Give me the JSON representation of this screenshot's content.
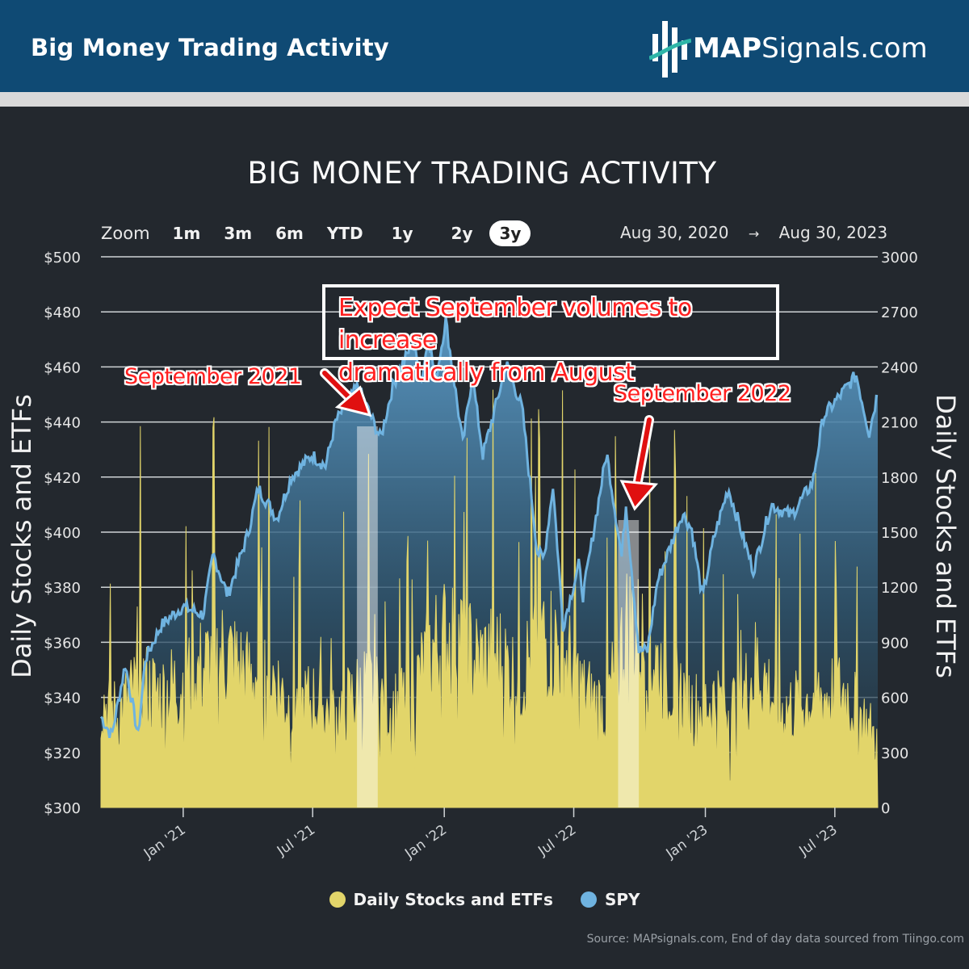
{
  "header": {
    "title": "Big Money Trading Activity",
    "brand_bold": "MAP",
    "brand_rest": "Signals.com"
  },
  "zoom": {
    "label": "Zoom",
    "buttons": [
      "1m",
      "3m",
      "6m",
      "YTD",
      "1y",
      "2y",
      "3y"
    ],
    "active": "3y"
  },
  "range": {
    "from": "Aug 30, 2020",
    "arrow": "→",
    "to": "Aug 30, 2023"
  },
  "annotations": {
    "note": [
      "Expect September volumes to increase",
      "dramatically from August"
    ],
    "sep2021": "September 2021",
    "sep2022": "September 2022"
  },
  "legend": [
    {
      "name": "Daily Stocks and ETFs",
      "color": "#e2d56a"
    },
    {
      "name": "SPY",
      "color": "#6fb3e0"
    }
  ],
  "source": "Source: MAPsignals.com, End of day data sourced from Tiingo.com",
  "chart_data": {
    "type": "line",
    "title": "BIG MONEY TRADING ACTIVITY",
    "ylabel_left": "Daily Stocks and ETFs",
    "ylabel_right": "Daily Stocks and ETFs",
    "y_left": {
      "ticks": [
        "$500",
        "$480",
        "$460",
        "$440",
        "$420",
        "$400",
        "$380",
        "$360",
        "$340",
        "$320",
        "$300"
      ],
      "range": [
        300,
        500
      ]
    },
    "y_right": {
      "ticks": [
        "3000",
        "2700",
        "2400",
        "2100",
        "1800",
        "1500",
        "1200",
        "900",
        "600",
        "300",
        "0"
      ],
      "range": [
        0,
        3000
      ]
    },
    "x_ticks": [
      {
        "label": "Jan '21",
        "date": "2021-01-01"
      },
      {
        "label": "Jul '21",
        "date": "2021-07-01"
      },
      {
        "label": "Jan '22",
        "date": "2022-01-01"
      },
      {
        "label": "Jul '22",
        "date": "2022-07-01"
      },
      {
        "label": "Jan '23",
        "date": "2023-01-01"
      },
      {
        "label": "Jul '23",
        "date": "2023-07-01"
      }
    ],
    "x_range": [
      "2020-09-08",
      "2023-08-30"
    ],
    "highlights": [
      {
        "from": "2021-09-01",
        "to": "2021-09-30",
        "label": "September 2021"
      },
      {
        "from": "2022-09-01",
        "to": "2022-09-30",
        "label": "September 2022"
      }
    ],
    "series": [
      {
        "name": "SPY",
        "axis": "left",
        "color": "#6fb3e0",
        "points": [
          [
            "2020-09-08",
            333
          ],
          [
            "2020-09-23",
            326
          ],
          [
            "2020-10-12",
            352
          ],
          [
            "2020-10-30",
            326
          ],
          [
            "2020-11-09",
            354
          ],
          [
            "2020-12-01",
            366
          ],
          [
            "2020-12-31",
            373
          ],
          [
            "2021-01-29",
            370
          ],
          [
            "2021-02-12",
            392
          ],
          [
            "2021-03-04",
            377
          ],
          [
            "2021-04-01",
            399
          ],
          [
            "2021-04-16",
            416
          ],
          [
            "2021-05-12",
            405
          ],
          [
            "2021-06-01",
            420
          ],
          [
            "2021-06-30",
            428
          ],
          [
            "2021-07-19",
            424
          ],
          [
            "2021-08-02",
            440
          ],
          [
            "2021-09-02",
            453
          ],
          [
            "2021-10-04",
            434
          ],
          [
            "2021-10-22",
            454
          ],
          [
            "2021-11-18",
            469
          ],
          [
            "2021-11-30",
            455
          ],
          [
            "2021-12-10",
            471
          ],
          [
            "2021-12-20",
            455
          ],
          [
            "2022-01-03",
            477
          ],
          [
            "2022-01-27",
            432
          ],
          [
            "2022-02-09",
            457
          ],
          [
            "2022-02-24",
            428
          ],
          [
            "2022-03-29",
            461
          ],
          [
            "2022-04-20",
            445
          ],
          [
            "2022-05-11",
            393
          ],
          [
            "2022-05-20",
            390
          ],
          [
            "2022-06-02",
            417
          ],
          [
            "2022-06-16",
            366
          ],
          [
            "2022-07-08",
            388
          ],
          [
            "2022-07-14",
            377
          ],
          [
            "2022-08-16",
            429
          ],
          [
            "2022-09-06",
            391
          ],
          [
            "2022-09-12",
            410
          ],
          [
            "2022-09-30",
            357
          ],
          [
            "2022-10-12",
            357
          ],
          [
            "2022-10-26",
            382
          ],
          [
            "2022-11-30",
            407
          ],
          [
            "2022-12-13",
            401
          ],
          [
            "2022-12-28",
            376
          ],
          [
            "2023-01-13",
            398
          ],
          [
            "2023-02-02",
            416
          ],
          [
            "2023-03-09",
            386
          ],
          [
            "2023-04-03",
            410
          ],
          [
            "2023-05-01",
            406
          ],
          [
            "2023-05-31",
            418
          ],
          [
            "2023-06-15",
            442
          ],
          [
            "2023-07-31",
            457
          ],
          [
            "2023-08-18",
            436
          ],
          [
            "2023-08-30",
            451
          ]
        ]
      },
      {
        "name": "Daily Stocks and ETFs",
        "axis": "right",
        "color": "#e2d56a",
        "points": [
          [
            "2020-09-08",
            620
          ],
          [
            "2020-10-01",
            520
          ],
          [
            "2020-11-01",
            700
          ],
          [
            "2020-12-01",
            640
          ],
          [
            "2021-01-01",
            720
          ],
          [
            "2021-02-01",
            800
          ],
          [
            "2021-03-01",
            880
          ],
          [
            "2021-04-01",
            740
          ],
          [
            "2021-05-01",
            780
          ],
          [
            "2021-06-01",
            560
          ],
          [
            "2021-07-01",
            610
          ],
          [
            "2021-08-01",
            520
          ],
          [
            "2021-09-15",
            700
          ],
          [
            "2021-10-15",
            560
          ],
          [
            "2021-11-15",
            620
          ],
          [
            "2021-12-15",
            900
          ],
          [
            "2022-01-15",
            1000
          ],
          [
            "2022-02-15",
            820
          ],
          [
            "2022-03-15",
            860
          ],
          [
            "2022-04-15",
            720
          ],
          [
            "2022-05-15",
            980
          ],
          [
            "2022-06-15",
            900
          ],
          [
            "2022-07-15",
            640
          ],
          [
            "2022-08-15",
            560
          ],
          [
            "2022-09-15",
            1050
          ],
          [
            "2022-10-15",
            880
          ],
          [
            "2022-11-15",
            720
          ],
          [
            "2022-12-15",
            560
          ],
          [
            "2023-01-15",
            620
          ],
          [
            "2023-02-15",
            560
          ],
          [
            "2023-03-15",
            820
          ],
          [
            "2023-04-15",
            540
          ],
          [
            "2023-05-15",
            600
          ],
          [
            "2023-06-15",
            640
          ],
          [
            "2023-07-15",
            660
          ],
          [
            "2023-08-30",
            380
          ]
        ]
      }
    ]
  }
}
